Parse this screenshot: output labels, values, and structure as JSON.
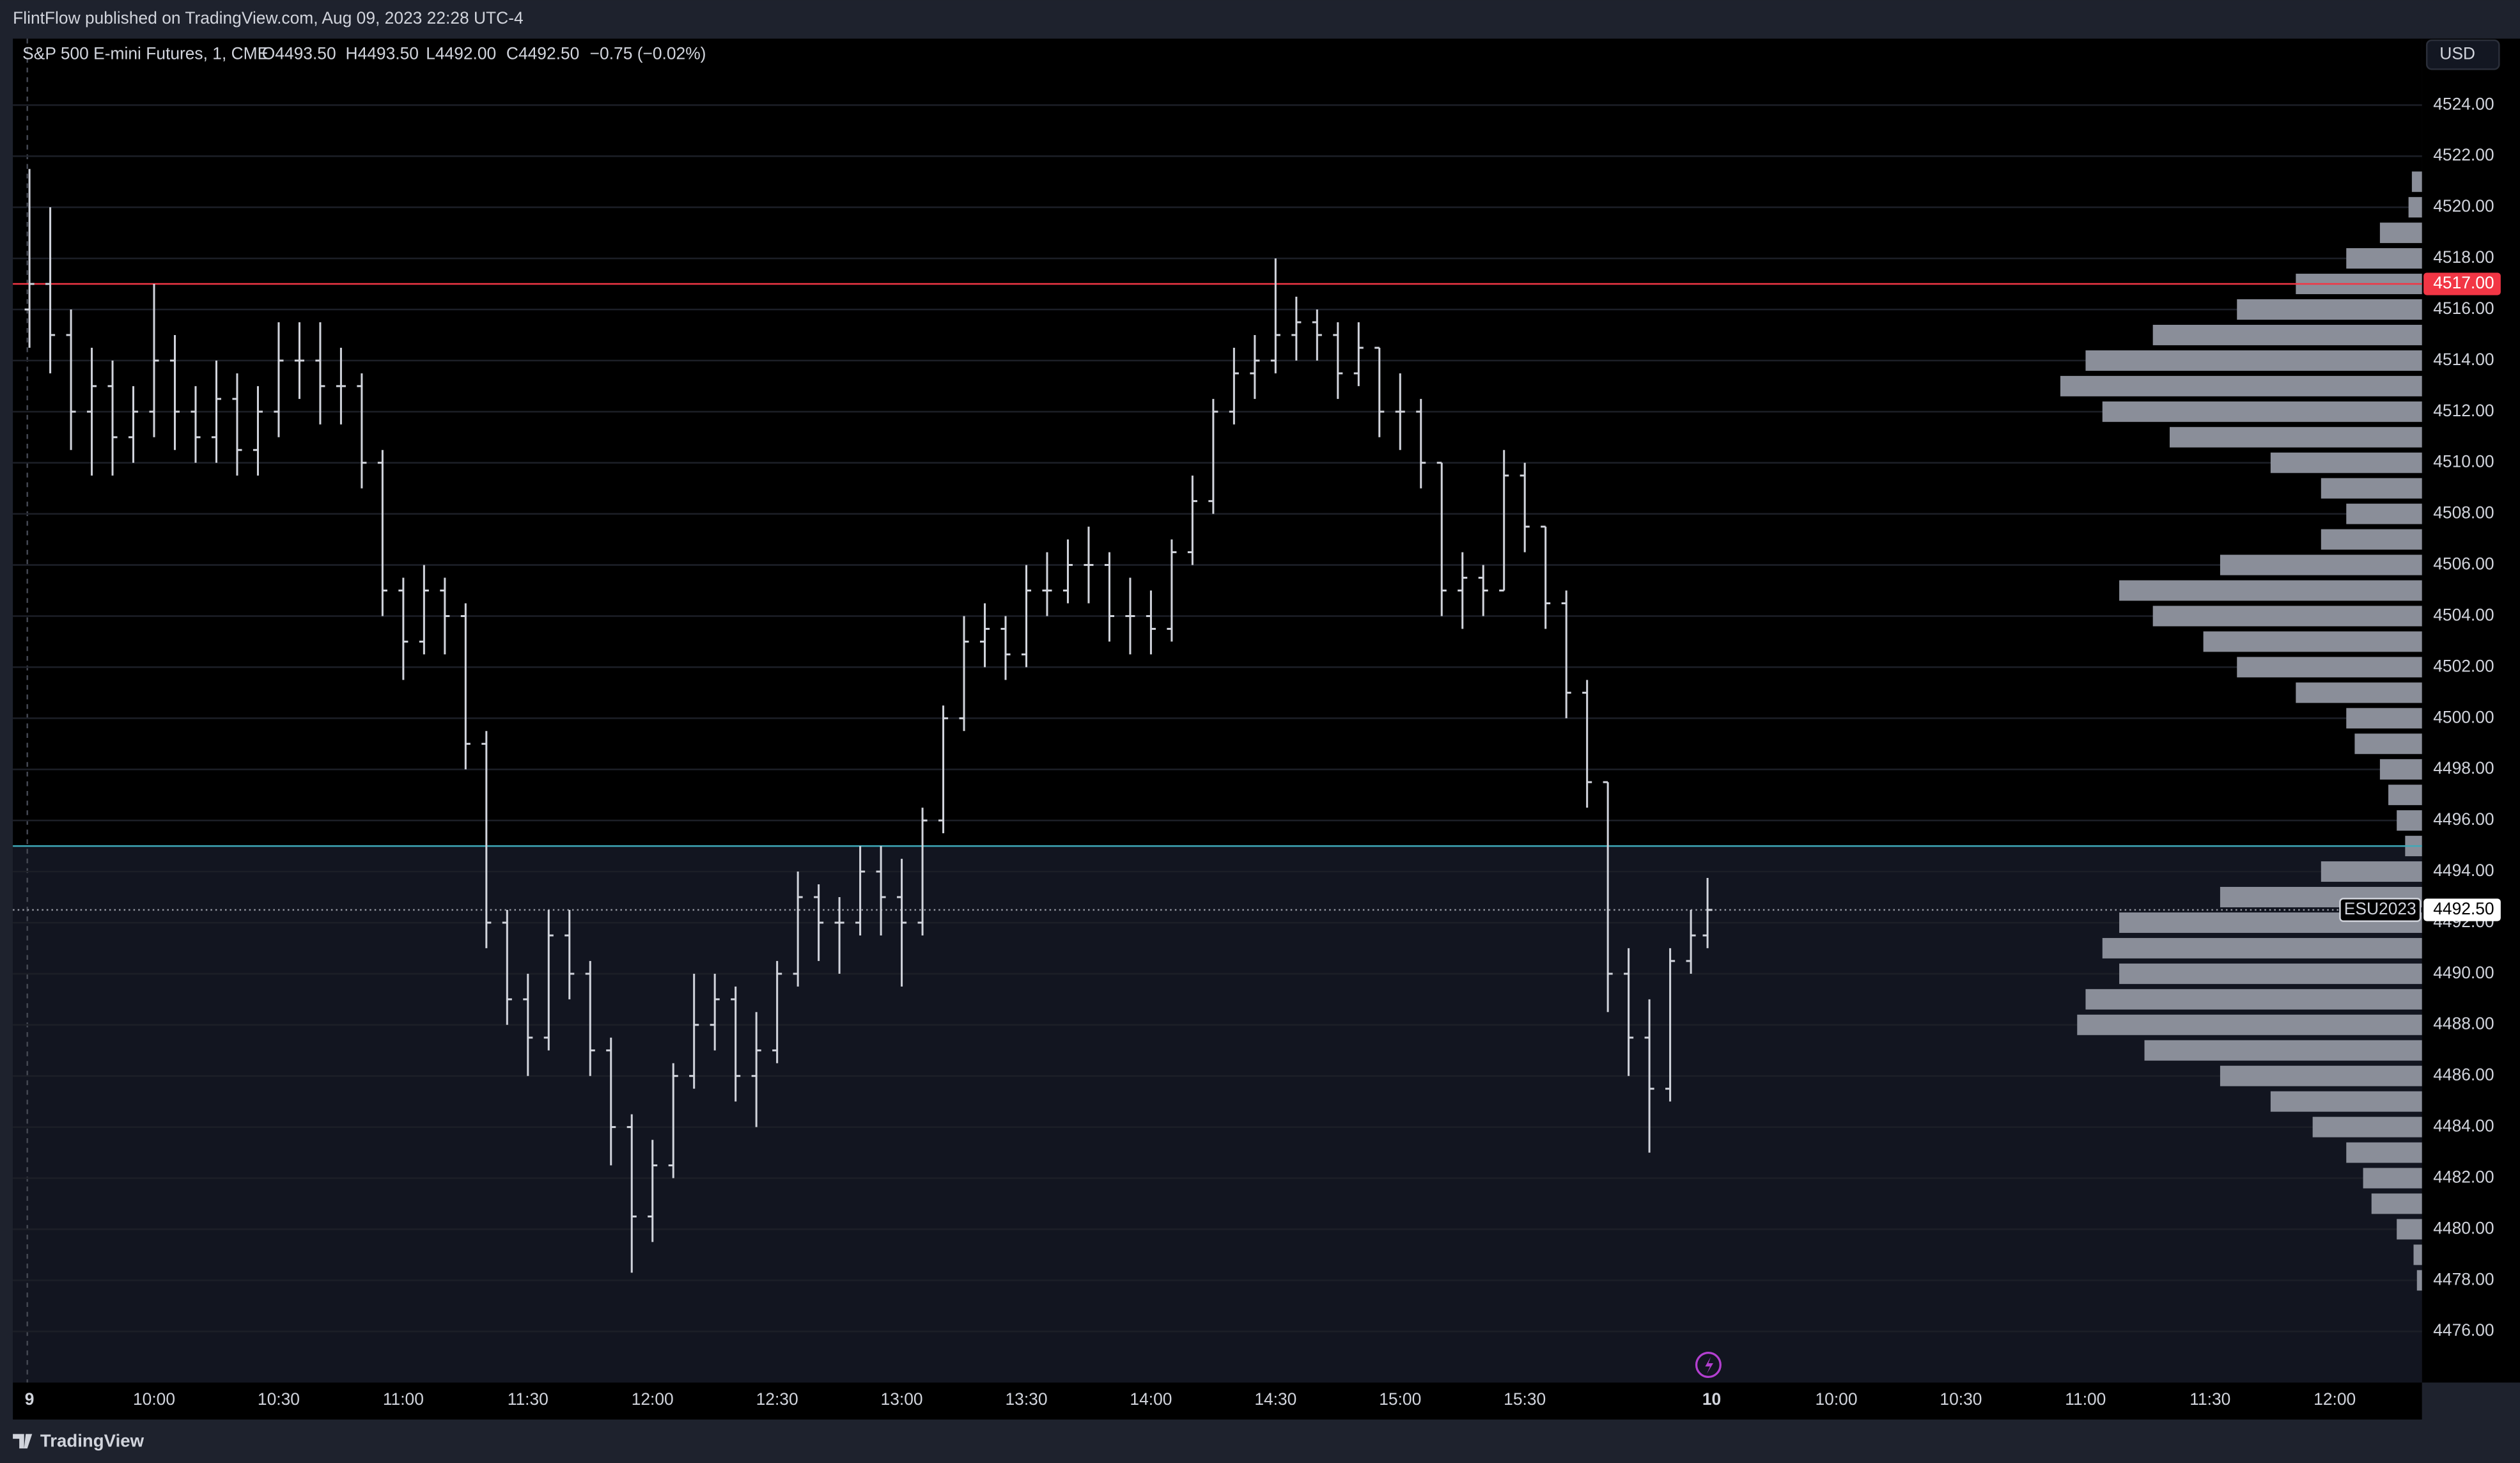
{
  "header": {
    "published": "FlintFlow published on TradingView.com, Aug 09, 2023 22:28 UTC-4",
    "currency": "USD",
    "footer": "TradingView"
  },
  "chart_data": {
    "type": "ohlc",
    "symbol": "S&P 500 E-mini Futures, 1, CME",
    "legend": {
      "open": "O4493.50",
      "high": "H4493.50",
      "low": "L4492.00",
      "close": "C4492.50",
      "change": "−0.75 (−0.02%)"
    },
    "color": "#d1d4dc",
    "x": [
      0,
      5,
      10,
      15,
      20,
      25,
      30,
      35,
      40,
      45,
      50,
      55,
      60,
      65,
      70,
      75,
      80,
      85,
      90,
      95,
      100,
      105,
      110,
      115,
      120,
      125,
      130,
      135,
      140,
      145,
      150,
      155,
      160,
      165,
      170,
      175,
      180,
      185,
      190,
      195,
      200,
      205,
      210,
      215,
      220,
      225,
      230,
      235,
      240,
      245,
      250,
      255,
      260,
      265,
      270,
      275,
      280,
      285,
      290,
      295,
      300,
      305,
      310,
      315,
      320,
      325,
      330,
      335,
      340,
      345,
      350,
      355,
      360,
      365,
      370,
      375,
      380,
      385,
      390,
      395,
      400,
      404
    ],
    "open": [
      4516,
      4517,
      4515,
      4512,
      4513,
      4511,
      4512,
      4514,
      4512,
      4511,
      4512.5,
      4510.5,
      4512,
      4514,
      4514,
      4513,
      4513,
      4510,
      4505,
      4503,
      4505,
      4504,
      4499,
      4492,
      4489,
      4487.5,
      4491.5,
      4490,
      4487,
      4484,
      4480.5,
      4482.5,
      4486,
      4488,
      4489,
      4486,
      4487,
      4490,
      4493,
      4492,
      4492,
      4494,
      4493,
      4492,
      4496,
      4500,
      4503,
      4503.5,
      4502.5,
      4505,
      4505,
      4506,
      4506,
      4504,
      4504,
      4503.5,
      4506.5,
      4508.5,
      4512,
      4513.5,
      4514,
      4515,
      4515.5,
      4515,
      4513.5,
      4514.5,
      4512,
      4512,
      4510,
      4505,
      4505.5,
      4505,
      4509.5,
      4507.5,
      4504.5,
      4501,
      4497.5,
      4490,
      4487.5,
      4485.5,
      4490.5,
      4491.5
    ],
    "high": [
      4521.5,
      4520,
      4516,
      4514.5,
      4514,
      4513,
      4517,
      4515,
      4513,
      4514,
      4513.5,
      4513,
      4515.5,
      4515.5,
      4515.5,
      4514.5,
      4513.5,
      4510.5,
      4505.5,
      4506,
      4505.5,
      4504.5,
      4499.5,
      4492.5,
      4490,
      4492.5,
      4492.5,
      4490.5,
      4487.5,
      4484.5,
      4483.5,
      4486.5,
      4490,
      4490,
      4489.5,
      4488.5,
      4490.5,
      4494,
      4493.5,
      4493,
      4495,
      4495,
      4494.5,
      4496.5,
      4500.5,
      4504,
      4504.5,
      4504,
      4506,
      4506.5,
      4507,
      4507.5,
      4506.5,
      4505.5,
      4505,
      4507,
      4509.5,
      4512.5,
      4514.5,
      4515,
      4518,
      4516.5,
      4516,
      4515.5,
      4515.5,
      4514.5,
      4513.5,
      4512.5,
      4510,
      4506.5,
      4506,
      4510.5,
      4510,
      4507.5,
      4505,
      4501.5,
      4497.5,
      4491,
      4489,
      4491,
      4492.5,
      4493.75
    ],
    "low": [
      4514.5,
      4513.5,
      4510.5,
      4509.5,
      4509.5,
      4510,
      4511,
      4510.5,
      4510,
      4510,
      4509.5,
      4509.5,
      4511,
      4512.5,
      4511.5,
      4511.5,
      4509,
      4504,
      4501.5,
      4502.5,
      4502.5,
      4498,
      4491,
      4488,
      4486,
      4487,
      4489,
      4486,
      4482.5,
      4478.3,
      4479.5,
      4482,
      4485.5,
      4487,
      4485,
      4484,
      4486.5,
      4489.5,
      4490.5,
      4490,
      4491.5,
      4491.5,
      4489.5,
      4491.5,
      4495.5,
      4499.5,
      4502,
      4501.5,
      4502,
      4504,
      4504.5,
      4504.5,
      4503,
      4502.5,
      4502.5,
      4503,
      4506,
      4508,
      4511.5,
      4512.5,
      4513.5,
      4514,
      4514,
      4512.5,
      4513,
      4511,
      4510.5,
      4509,
      4504,
      4503.5,
      4504,
      4505,
      4506.5,
      4503.5,
      4500,
      4496.5,
      4488.5,
      4486,
      4483,
      4485,
      4490,
      4491
    ],
    "close": [
      4517,
      4515,
      4512,
      4513,
      4511,
      4512,
      4514,
      4512,
      4511,
      4512.5,
      4510.5,
      4512,
      4514,
      4514,
      4513,
      4513,
      4510,
      4505,
      4503,
      4505,
      4504,
      4499,
      4492,
      4489,
      4487.5,
      4491.5,
      4490,
      4487,
      4484,
      4480.5,
      4482.5,
      4486,
      4488,
      4489,
      4486,
      4487,
      4490,
      4493,
      4492,
      4492,
      4494,
      4493,
      4492,
      4496,
      4500,
      4503,
      4503.5,
      4502.5,
      4505,
      4505,
      4506,
      4506,
      4504,
      4504,
      4503.5,
      4506.5,
      4508.5,
      4512,
      4513.5,
      4514,
      4515,
      4515.5,
      4515,
      4513.5,
      4514.5,
      4512,
      4512,
      4510,
      4505,
      4505.5,
      4505,
      4509.5,
      4507.5,
      4504.5,
      4501,
      4497.5,
      4490,
      4487.5,
      4485.5,
      4490.5,
      4491.5,
      4492.5
    ],
    "xlim": [
      -4,
      576
    ],
    "ylim": [
      4474,
      4526.6
    ],
    "xticks": [
      {
        "value": 0,
        "label": "9"
      },
      {
        "value": 30,
        "label": "10:00"
      },
      {
        "value": 60,
        "label": "10:30"
      },
      {
        "value": 90,
        "label": "11:00"
      },
      {
        "value": 120,
        "label": "11:30"
      },
      {
        "value": 150,
        "label": "12:00"
      },
      {
        "value": 180,
        "label": "12:30"
      },
      {
        "value": 210,
        "label": "13:00"
      },
      {
        "value": 240,
        "label": "13:30"
      },
      {
        "value": 270,
        "label": "14:00"
      },
      {
        "value": 300,
        "label": "14:30"
      },
      {
        "value": 330,
        "label": "15:00"
      },
      {
        "value": 360,
        "label": "15:30"
      },
      {
        "value": 405,
        "label": "10"
      },
      {
        "value": 435,
        "label": "10:00"
      },
      {
        "value": 465,
        "label": "10:30"
      },
      {
        "value": 495,
        "label": "11:00"
      },
      {
        "value": 525,
        "label": "11:30"
      },
      {
        "value": 555,
        "label": "12:00"
      }
    ],
    "yticks": [
      {
        "value": 4476,
        "label": "4476.00"
      },
      {
        "value": 4478,
        "label": "4478.00"
      },
      {
        "value": 4480,
        "label": "4480.00"
      },
      {
        "value": 4482,
        "label": "4482.00"
      },
      {
        "value": 4484,
        "label": "4484.00"
      },
      {
        "value": 4486,
        "label": "4486.00"
      },
      {
        "value": 4488,
        "label": "4488.00"
      },
      {
        "value": 4490,
        "label": "4490.00"
      },
      {
        "value": 4492,
        "label": "4492.00"
      },
      {
        "value": 4494,
        "label": "4494.00"
      },
      {
        "value": 4496,
        "label": "4496.00"
      },
      {
        "value": 4498,
        "label": "4498.00"
      },
      {
        "value": 4500,
        "label": "4500.00"
      },
      {
        "value": 4502,
        "label": "4502.00"
      },
      {
        "value": 4504,
        "label": "4504.00"
      },
      {
        "value": 4506,
        "label": "4506.00"
      },
      {
        "value": 4508,
        "label": "4508.00"
      },
      {
        "value": 4510,
        "label": "4510.00"
      },
      {
        "value": 4512,
        "label": "4512.00"
      },
      {
        "value": 4514,
        "label": "4514.00"
      },
      {
        "value": 4516,
        "label": "4516.00"
      },
      {
        "value": 4518,
        "label": "4518.00"
      },
      {
        "value": 4520,
        "label": "4520.00"
      },
      {
        "value": 4522,
        "label": "4522.00"
      },
      {
        "value": 4524,
        "label": "4524.00"
      }
    ],
    "grid": true,
    "profile": {
      "color": "#8a8e99",
      "levels": [
        4478,
        4479,
        4480,
        4481,
        4482,
        4483,
        4484,
        4485,
        4486,
        4487,
        4488,
        4489,
        4490,
        4491,
        4492,
        4493,
        4494,
        4495,
        4496,
        4497,
        4498,
        4499,
        4500,
        4501,
        4502,
        4503,
        4504,
        4505,
        4506,
        4507,
        4508,
        4509,
        4510,
        4511,
        4512,
        4513,
        4514,
        4515,
        4516,
        4517,
        4518,
        4519,
        4520,
        4521
      ],
      "volumes": [
        3,
        5,
        15,
        30,
        35,
        45,
        65,
        90,
        120,
        165,
        205,
        200,
        180,
        190,
        180,
        120,
        60,
        10,
        15,
        20,
        25,
        40,
        45,
        75,
        110,
        130,
        160,
        180,
        120,
        60,
        45,
        60,
        90,
        150,
        190,
        215,
        200,
        160,
        110,
        75,
        45,
        25,
        8,
        6
      ]
    },
    "lines": [
      {
        "value": 4517,
        "label": "4517.00",
        "color": "#f23645"
      },
      {
        "value": 4495,
        "color": "#3fa9b8"
      }
    ],
    "last": {
      "value": 4492.5,
      "label": "4492.50",
      "symbol": "ESU2023"
    }
  }
}
